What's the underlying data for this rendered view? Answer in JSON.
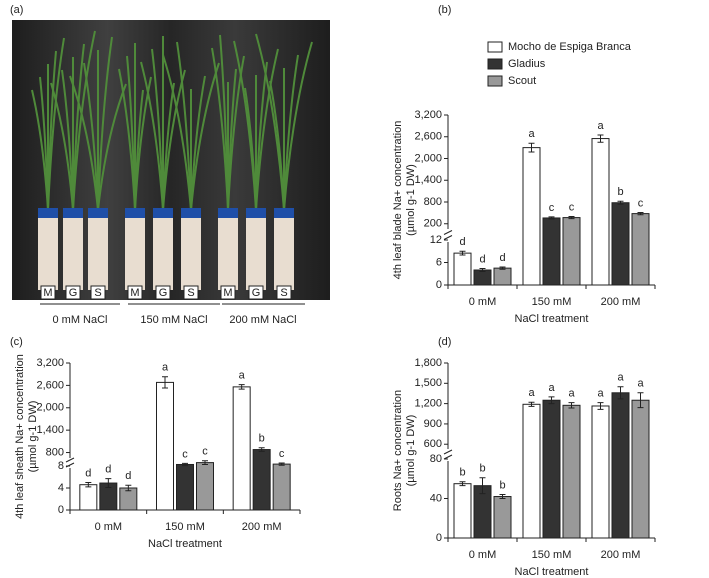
{
  "photo": {
    "panel": "(a)",
    "pot_labels": [
      "M",
      "G",
      "S",
      "M",
      "G",
      "S",
      "M",
      "G",
      "S"
    ],
    "group_labels": [
      "0 mM NaCl",
      "150 mM NaCl",
      "200 mM NaCl"
    ]
  },
  "chart_data": [
    {
      "type": "bar",
      "panel": "(b)",
      "ylabel": [
        "4th leaf blade Na+ concentration",
        "(µmol g-1 DW)"
      ],
      "xlabel": "NaCl treatment",
      "categories": [
        "0 mM",
        "150 mM",
        "200 mM"
      ],
      "legend": true,
      "segments": [
        {
          "ylim": [
            0,
            12
          ],
          "yticks": [
            0,
            6,
            12
          ]
        },
        {
          "ylim": [
            0,
            3200
          ],
          "yticks": [
            200,
            800,
            {
              "value": 1400,
              "label": "1,400"
            },
            {
              "value": 2000,
              "label": "2,000"
            },
            {
              "value": 2600,
              "label": "2,600"
            },
            {
              "value": 3200,
              "label": "3,200"
            }
          ]
        }
      ],
      "series": [
        {
          "name": "Mocho de Espiga Branca",
          "color": "#ffffff",
          "values": [
            8.5,
            2300,
            2550
          ],
          "errors": [
            0.5,
            120,
            100
          ],
          "letters": [
            "d",
            "a",
            "a"
          ]
        },
        {
          "name": "Gladius",
          "color": "#333333",
          "values": [
            4,
            360,
            780
          ],
          "errors": [
            0.4,
            30,
            40
          ],
          "letters": [
            "d",
            "c",
            "b"
          ]
        },
        {
          "name": "Scout",
          "color": "#999999",
          "values": [
            4.5,
            370,
            480
          ],
          "errors": [
            0.3,
            30,
            30
          ],
          "letters": [
            "d",
            "c",
            "c"
          ]
        }
      ]
    },
    {
      "type": "bar",
      "panel": "(c)",
      "ylabel": [
        "4th leaf sheath Na+ concentration",
        "(µmol g-1 DW)"
      ],
      "xlabel": "NaCl treatment",
      "categories": [
        "0 mM",
        "150 mM",
        "200 mM"
      ],
      "legend": false,
      "segments": [
        {
          "ylim": [
            0,
            8
          ],
          "yticks": [
            0,
            4,
            8
          ]
        },
        {
          "ylim": [
            600,
            3200
          ],
          "yticks": [
            800,
            {
              "value": 1400,
              "label": "1,400"
            },
            {
              "value": 2000,
              "label": "2,000"
            },
            {
              "value": 2600,
              "label": "2,600"
            },
            {
              "value": 3200,
              "label": "3,200"
            }
          ]
        }
      ],
      "series": [
        {
          "name": "Mocho de Espiga Branca",
          "color": "#ffffff",
          "values": [
            4.6,
            2680,
            2560
          ],
          "errors": [
            0.4,
            150,
            60
          ],
          "letters": [
            "d",
            "a",
            "a"
          ]
        },
        {
          "name": "Gladius",
          "color": "#333333",
          "values": [
            4.9,
            480,
            880
          ],
          "errors": [
            0.8,
            30,
            50
          ],
          "letters": [
            "d",
            "c",
            "b"
          ]
        },
        {
          "name": "Scout",
          "color": "#999999",
          "values": [
            4.0,
            530,
            490
          ],
          "errors": [
            0.5,
            50,
            30
          ],
          "letters": [
            "d",
            "c",
            "c"
          ]
        }
      ]
    },
    {
      "type": "bar",
      "panel": "(d)",
      "ylabel": [
        "Roots Na+ concentration",
        "(µmol g-1 DW)"
      ],
      "xlabel": "NaCl treatment",
      "categories": [
        "0 mM",
        "150 mM",
        "200 mM"
      ],
      "legend": false,
      "segments": [
        {
          "ylim": [
            0,
            80
          ],
          "yticks": [
            0,
            40,
            80
          ]
        },
        {
          "ylim": [
            500,
            1800
          ],
          "yticks": [
            600,
            900,
            {
              "value": 1200,
              "label": "1,200"
            },
            {
              "value": 1500,
              "label": "1,500"
            },
            {
              "value": 1800,
              "label": "1,800"
            }
          ]
        }
      ],
      "series": [
        {
          "name": "Mocho de Espiga Branca",
          "color": "#ffffff",
          "values": [
            55,
            1190,
            1165
          ],
          "errors": [
            2,
            30,
            50
          ],
          "letters": [
            "b",
            "a",
            "a"
          ]
        },
        {
          "name": "Gladius",
          "color": "#333333",
          "values": [
            53,
            1250,
            1360
          ],
          "errors": [
            8,
            50,
            90
          ],
          "letters": [
            "b",
            "a",
            "a"
          ]
        },
        {
          "name": "Scout",
          "color": "#999999",
          "values": [
            42,
            1175,
            1250
          ],
          "errors": [
            2,
            40,
            110
          ],
          "letters": [
            "b",
            "a",
            "a"
          ]
        }
      ]
    }
  ]
}
